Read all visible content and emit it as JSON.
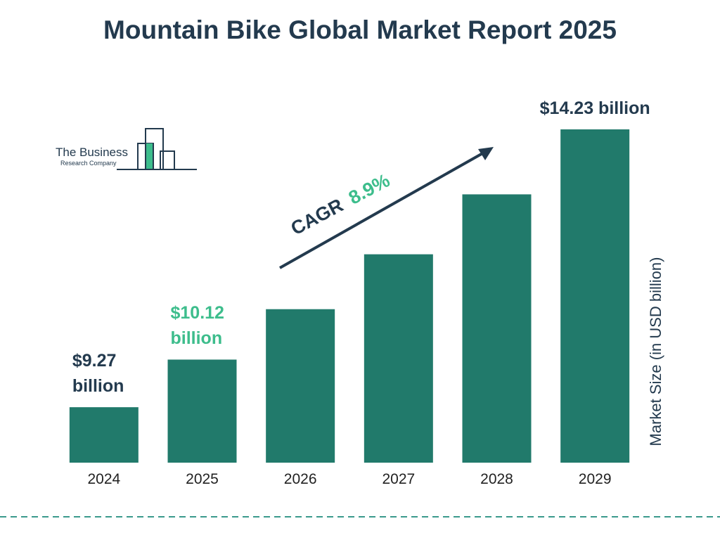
{
  "chart_data": {
    "type": "bar",
    "title": "Mountain Bike Global Market Report 2025",
    "y_axis_label": "Market Size (in USD billion)",
    "categories": [
      "2024",
      "2025",
      "2026",
      "2027",
      "2028",
      "2029"
    ],
    "values": [
      9.27,
      10.12,
      11.02,
      12.0,
      13.07,
      14.23
    ],
    "value_labels": [
      "$9.27 billion",
      "$10.12 billion",
      null,
      null,
      null,
      "$14.23 billion"
    ],
    "value_label_colors": [
      "#233a4e",
      "#3dbd8c",
      null,
      null,
      null,
      "#233a4e"
    ],
    "color": "#217a6b",
    "ylim": [
      8.28,
      14.23
    ],
    "cagr": {
      "label": "CAGR",
      "value": "8.9%"
    }
  },
  "logo": {
    "name": "The Business",
    "subname": "Research Company"
  }
}
